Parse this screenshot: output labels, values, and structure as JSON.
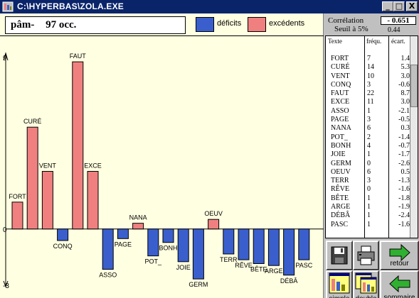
{
  "window": {
    "title": "C:\\HYPERBAS\\ZOLA.EXE",
    "controls": [
      "_",
      "□",
      "X"
    ]
  },
  "word_box": {
    "word": "pâm-",
    "count": "97 occ."
  },
  "legend": {
    "deficits": {
      "label": "déficits",
      "color": "#3a5fcd"
    },
    "excedents": {
      "label": "excédents",
      "color": "#f08080"
    }
  },
  "chart_data": {
    "type": "bar",
    "categories": [
      "FORT",
      "CURÉ",
      "VENT",
      "CONQ",
      "FAUT",
      "EXCE",
      "ASSO",
      "PAGE",
      "NANA",
      "POT_",
      "BONH",
      "JOIE",
      "GERM",
      "OEUV",
      "TERR",
      "RÊVE",
      "BÊTE",
      "ARGE",
      "DÉBÂ",
      "PASC"
    ],
    "values": [
      1.4,
      5.3,
      3.0,
      -0.6,
      8.7,
      3.0,
      -2.1,
      -0.5,
      0.3,
      -1.4,
      -0.7,
      -1.7,
      -2.6,
      0.5,
      -1.3,
      -1.6,
      -1.8,
      -1.9,
      -2.4,
      -1.6
    ],
    "y_ticks": [
      "9",
      "0",
      "-3"
    ],
    "ylim": [
      -3,
      9
    ],
    "positive_color": "#f08080",
    "negative_color": "#3a5fcd"
  },
  "correlation": {
    "label": "Corrélation",
    "value": "- 0.651",
    "threshold_label": "Seuil à 5%",
    "threshold_value": "0.44"
  },
  "table": {
    "headers": {
      "texte": "Texte",
      "frequ": "fréqu.",
      "ecart": "écart."
    },
    "rows": [
      {
        "word": "FORT",
        "freq": "7",
        "ecart": "1.4"
      },
      {
        "word": "CURÉ",
        "freq": "14",
        "ecart": "5.3"
      },
      {
        "word": "VENT",
        "freq": "10",
        "ecart": "3.0"
      },
      {
        "word": "CONQ",
        "freq": "3",
        "ecart": "-0.6"
      },
      {
        "word": "FAUT",
        "freq": "22",
        "ecart": "8.7"
      },
      {
        "word": "EXCE",
        "freq": "11",
        "ecart": "3.0"
      },
      {
        "word": "ASSO",
        "freq": "1",
        "ecart": "-2.1"
      },
      {
        "word": "PAGE",
        "freq": "3",
        "ecart": "-0.5"
      },
      {
        "word": "NANA",
        "freq": "6",
        "ecart": "0.3"
      },
      {
        "word": "POT_",
        "freq": "2",
        "ecart": "-1.4"
      },
      {
        "word": "BONH",
        "freq": "4",
        "ecart": "-0.7"
      },
      {
        "word": "JOIE",
        "freq": "1",
        "ecart": "-1.7"
      },
      {
        "word": "GERM",
        "freq": "0",
        "ecart": "-2.6"
      },
      {
        "word": "OEUV",
        "freq": "6",
        "ecart": "0.5"
      },
      {
        "word": "TERR",
        "freq": "3",
        "ecart": "-1.3"
      },
      {
        "word": "RÊVE",
        "freq": "0",
        "ecart": "-1.6"
      },
      {
        "word": "BÊTE",
        "freq": "1",
        "ecart": "-1.8"
      },
      {
        "word": "ARGE",
        "freq": "1",
        "ecart": "-1.9"
      },
      {
        "word": "DÉBÂ",
        "freq": "1",
        "ecart": "-2.4"
      },
      {
        "word": "PASC",
        "freq": "1",
        "ecart": "-1.6"
      }
    ]
  },
  "buttons": {
    "save_icon": "floppy-disk-icon",
    "print_icon": "printer-icon",
    "retour": "retour",
    "simple": "simple",
    "double": "double",
    "sommaire": "sommaire"
  }
}
